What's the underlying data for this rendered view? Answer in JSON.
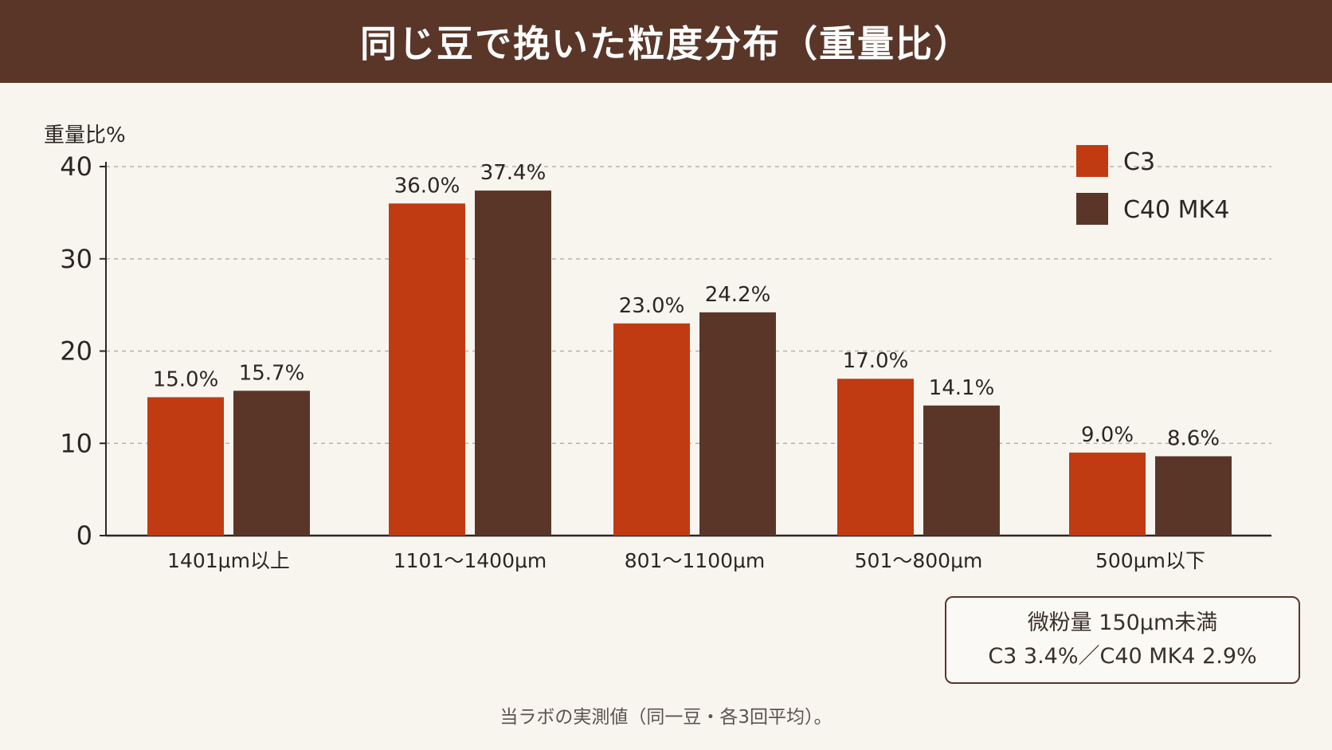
{
  "title": "同じ豆で挽いた粒度分布（重量比）",
  "chart_data": {
    "type": "bar",
    "ylabel": "重量比%",
    "xlabel": "",
    "ylim": [
      0,
      40
    ],
    "yticks": [
      0,
      10,
      20,
      30,
      40
    ],
    "grid": true,
    "legend_position": "top-right",
    "categories": [
      "1401μm以上",
      "1101〜1400μm",
      "801〜1100μm",
      "501〜800μm",
      "500μm以下"
    ],
    "series": [
      {
        "name": "C3",
        "color": "#c03b12",
        "values": [
          15.0,
          36.0,
          23.0,
          17.0,
          9.0
        ],
        "labels": [
          "15.0%",
          "36.0%",
          "23.0%",
          "17.0%",
          "9.0%"
        ]
      },
      {
        "name": "C40 MK4",
        "color": "#5a3629",
        "values": [
          15.7,
          37.4,
          24.2,
          14.1,
          8.6
        ],
        "labels": [
          "15.7%",
          "37.4%",
          "24.2%",
          "14.1%",
          "8.6%"
        ]
      }
    ]
  },
  "note": {
    "line1": "微粉量 150μm未満",
    "line2": "C3 3.4%／C40 MK4 2.9%"
  },
  "footnote": "当ラボの実測値（同一豆・各3回平均）。"
}
